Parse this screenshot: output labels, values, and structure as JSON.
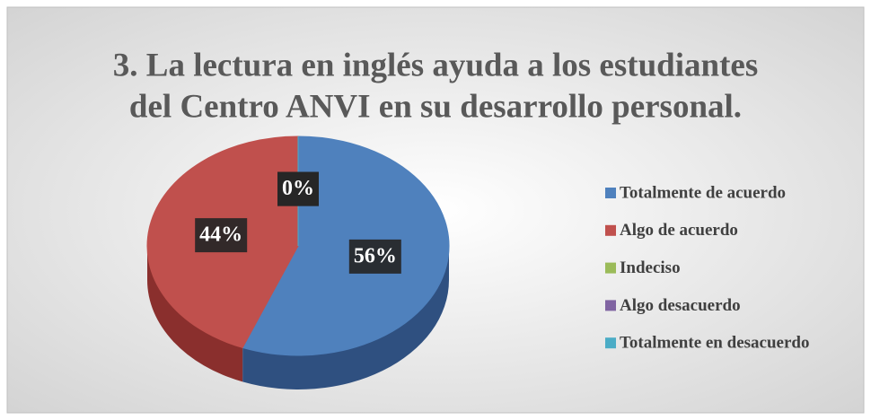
{
  "chart_data": {
    "type": "pie",
    "title": [
      "3. La lectura en inglés ayuda a los estudiantes",
      "del Centro ANVI en su desarrollo personal."
    ],
    "categories": [
      "Totalmente de acuerdo",
      "Algo de acuerdo",
      "Indeciso",
      "Algo desacuerdo",
      "Totalmente en desacuerdo"
    ],
    "values": [
      56,
      44,
      0,
      0,
      0
    ],
    "value_labels": [
      "56%",
      "44%",
      "0%",
      "0%",
      "0%"
    ],
    "colors": [
      "#4f81bd",
      "#c0504d",
      "#9bbb59",
      "#8064a2",
      "#4bacc6"
    ],
    "side_colors": [
      "#2f5080",
      "#8a2f2d",
      "#6a8a36",
      "#574378",
      "#2e7d92"
    ],
    "legend": "right"
  }
}
